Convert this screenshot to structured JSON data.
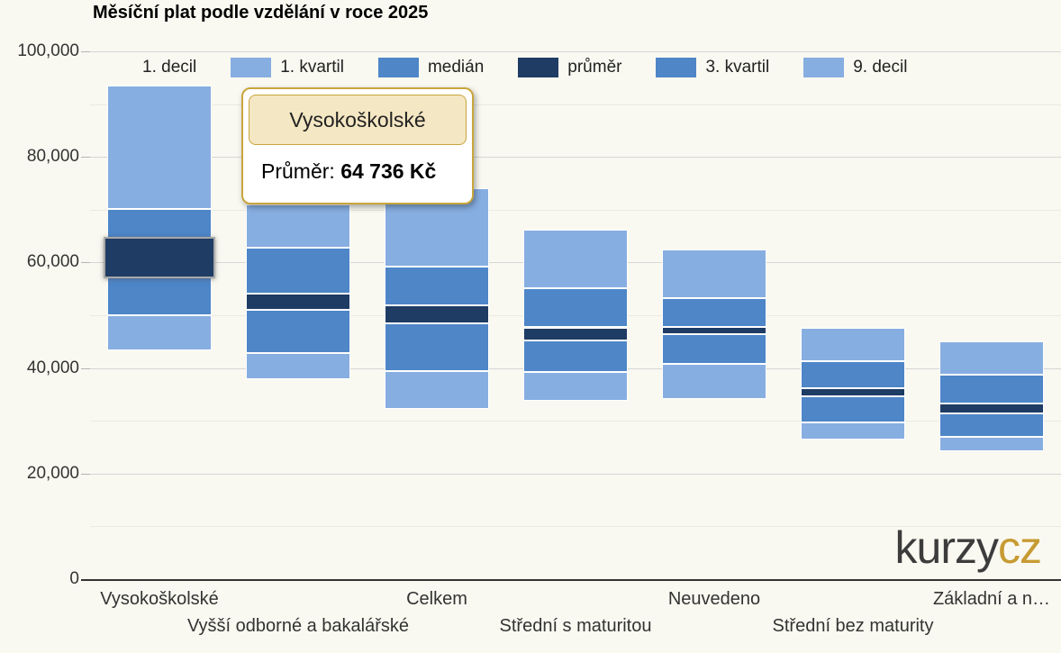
{
  "title": "Měsíční plat podle vzdělání v roce 2025",
  "colors": {
    "background": "#f9f9f1",
    "light_blue": "#87aee1",
    "medium_blue": "#4e86c8",
    "dark_navy": "#1e3c64",
    "tooltip_header_bg": "#f4e7c3",
    "tooltip_border": "#c9a53c",
    "grid_major": "#d6d6d6",
    "grid_minor": "#eaeae2",
    "axis_line": "#333333",
    "logo_dark": "#3c3c3c",
    "logo_gold": "#c79b33"
  },
  "legend": {
    "items": [
      {
        "label": "1. decil",
        "color_key": "transparent"
      },
      {
        "label": "1. kvartil",
        "color_key": "light_blue"
      },
      {
        "label": "medián",
        "color_key": "medium_blue"
      },
      {
        "label": "průměr",
        "color_key": "dark_navy"
      },
      {
        "label": "3. kvartil",
        "color_key": "medium_blue"
      },
      {
        "label": "9. decil",
        "color_key": "light_blue"
      }
    ]
  },
  "tooltip": {
    "title": "Vysokoškolské",
    "label": "Průměr: ",
    "value": "64 736 Kč"
  },
  "watermark": {
    "text_dark": "kurzy",
    "text_gold": "cz"
  },
  "chart_data": {
    "type": "bar",
    "subtype": "floating-range-columns",
    "title": "Měsíční plat podle vzdělání v roce 2025",
    "categories": [
      "Vysokoškolské",
      "Vyšší odborné a bakalářské",
      "Celkem",
      "Střední s maturitou",
      "Neuvedeno",
      "Střední bez maturity",
      "Základní a n…"
    ],
    "series": [
      {
        "name": "1. decil",
        "values": [
          43300,
          37800,
          32300,
          33800,
          34100,
          26400,
          24300
        ]
      },
      {
        "name": "1. kvartil",
        "values": [
          50000,
          42900,
          39500,
          39200,
          40800,
          29700,
          26900
        ]
      },
      {
        "name": "medián",
        "values": [
          57100,
          51000,
          48400,
          45300,
          46400,
          34600,
          31400
        ]
      },
      {
        "name": "průměr",
        "values": [
          64736,
          54100,
          51900,
          47700,
          47800,
          36200,
          33200
        ]
      },
      {
        "name": "3. kvartil",
        "values": [
          70100,
          62800,
          59200,
          55100,
          53300,
          41300,
          38800
        ]
      },
      {
        "name": "9. decil",
        "values": [
          93500,
          71000,
          74100,
          66200,
          62400,
          47700,
          45000
        ]
      }
    ],
    "band_color_keys": [
      "light_blue",
      "medium_blue",
      "dark_navy",
      "medium_blue",
      "light_blue"
    ],
    "ylim": [
      0,
      100000
    ],
    "yticks": [
      0,
      20000,
      40000,
      60000,
      80000,
      100000
    ],
    "ytick_labels": [
      "0",
      "20,000",
      "40,000",
      "60,000",
      "80,000",
      "100,000"
    ],
    "minor_tick_step": 10000,
    "grid": true,
    "legend_position": "top",
    "hovered": {
      "category_index": 0,
      "band_index": 2,
      "series": "průměr"
    }
  }
}
